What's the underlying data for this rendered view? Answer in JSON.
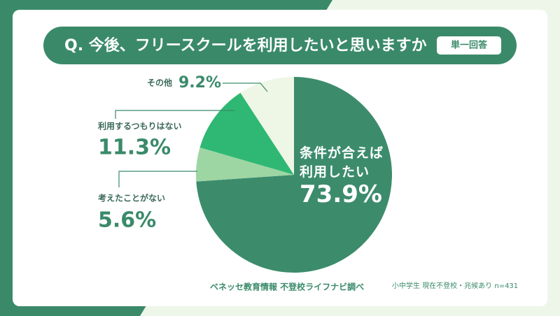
{
  "chart_data": {
    "type": "pie",
    "title": "Q. 今後、フリースクールを利用したいと思いますか",
    "subtitle": "単一回答",
    "categories": [
      "条件が合えば利用したい",
      "考えたことがない",
      "利用するつもりはない",
      "その他"
    ],
    "values": [
      73.9,
      5.6,
      11.3,
      9.2
    ],
    "value_labels": [
      "73.9%",
      "5.6%",
      "11.3%",
      "9.2%"
    ],
    "colors": [
      "#3c8c6c",
      "#9dd6a3",
      "#2fb873",
      "#eef7e6"
    ],
    "source": "ベネッセ教育情報 不登校ライフナビ調べ",
    "note": "小中学生 現在不登校・兆候あり n=431"
  }
}
